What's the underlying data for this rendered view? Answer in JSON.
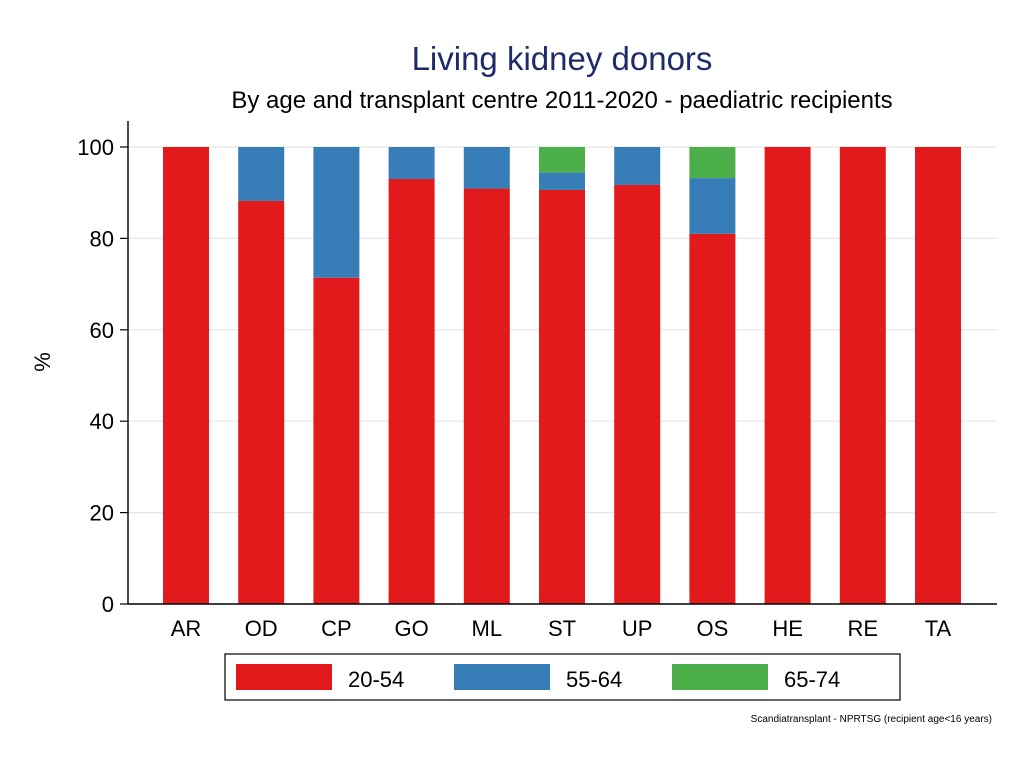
{
  "chart_data": {
    "type": "bar",
    "stacked": true,
    "title": "Living kidney donors",
    "subtitle": "By age and transplant centre 2011-2020 - paediatric recipients",
    "xlabel": "",
    "ylabel": "%",
    "ylim": [
      0,
      100
    ],
    "yticks": [
      0,
      20,
      40,
      60,
      80,
      100
    ],
    "grid": true,
    "legend_position": "bottom",
    "categories": [
      "AR",
      "OD",
      "CP",
      "GO",
      "ML",
      "ST",
      "UP",
      "OS",
      "HE",
      "RE",
      "TA"
    ],
    "series": [
      {
        "name": "20-54",
        "color": "#e31a1c",
        "values": [
          100,
          88.2,
          71.4,
          93.0,
          90.9,
          90.6,
          91.7,
          81.0,
          100,
          100,
          100
        ]
      },
      {
        "name": "55-64",
        "color": "#377eb8",
        "values": [
          0,
          11.8,
          28.6,
          7.0,
          9.1,
          3.8,
          8.3,
          12.2,
          0,
          0,
          0
        ]
      },
      {
        "name": "65-74",
        "color": "#4daf4a",
        "values": [
          0,
          0,
          0,
          0,
          0,
          5.6,
          0,
          6.8,
          0,
          0,
          0
        ]
      }
    ],
    "source_note": "Scandiatransplant - NPRTSG (recipient age<16 years)"
  }
}
